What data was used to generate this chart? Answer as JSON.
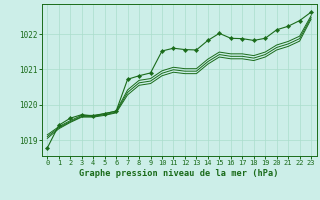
{
  "title": "Graphe pression niveau de la mer (hPa)",
  "bg_color": "#cceee8",
  "grid_color": "#aaddcc",
  "line_color": "#1a6b1a",
  "spine_color": "#1a6b1a",
  "xlim": [
    -0.5,
    23.5
  ],
  "ylim": [
    1018.55,
    1022.85
  ],
  "yticks": [
    1019,
    1020,
    1021,
    1022
  ],
  "xticks": [
    0,
    1,
    2,
    3,
    4,
    5,
    6,
    7,
    8,
    9,
    10,
    11,
    12,
    13,
    14,
    15,
    16,
    17,
    18,
    19,
    20,
    21,
    22,
    23
  ],
  "series_marked": [
    1018.78,
    1019.42,
    1019.62,
    1019.72,
    1019.68,
    1019.75,
    1019.82,
    1020.72,
    1020.82,
    1020.9,
    1021.52,
    1021.6,
    1021.56,
    1021.55,
    1021.82,
    1022.02,
    1021.88,
    1021.87,
    1021.82,
    1021.88,
    1022.12,
    1022.22,
    1022.38,
    1022.62
  ],
  "series_plain": [
    [
      1019.05,
      1019.32,
      1019.5,
      1019.65,
      1019.65,
      1019.7,
      1019.77,
      1020.28,
      1020.55,
      1020.6,
      1020.82,
      1020.92,
      1020.88,
      1020.88,
      1021.15,
      1021.35,
      1021.3,
      1021.3,
      1021.25,
      1021.35,
      1021.55,
      1021.65,
      1021.8,
      1022.42
    ],
    [
      1019.1,
      1019.35,
      1019.52,
      1019.67,
      1019.67,
      1019.72,
      1019.79,
      1020.35,
      1020.62,
      1020.67,
      1020.89,
      1020.99,
      1020.95,
      1020.95,
      1021.22,
      1021.42,
      1021.37,
      1021.37,
      1021.32,
      1021.42,
      1021.62,
      1021.72,
      1021.87,
      1022.47
    ],
    [
      1019.15,
      1019.38,
      1019.55,
      1019.7,
      1019.7,
      1019.75,
      1019.82,
      1020.42,
      1020.69,
      1020.74,
      1020.96,
      1021.06,
      1021.02,
      1021.02,
      1021.29,
      1021.49,
      1021.44,
      1021.44,
      1021.39,
      1021.49,
      1021.69,
      1021.79,
      1021.94,
      1022.52
    ]
  ],
  "ylabel_fontsize": 5.5,
  "xlabel_fontsize": 6.2,
  "tick_fontsize": 5.0
}
